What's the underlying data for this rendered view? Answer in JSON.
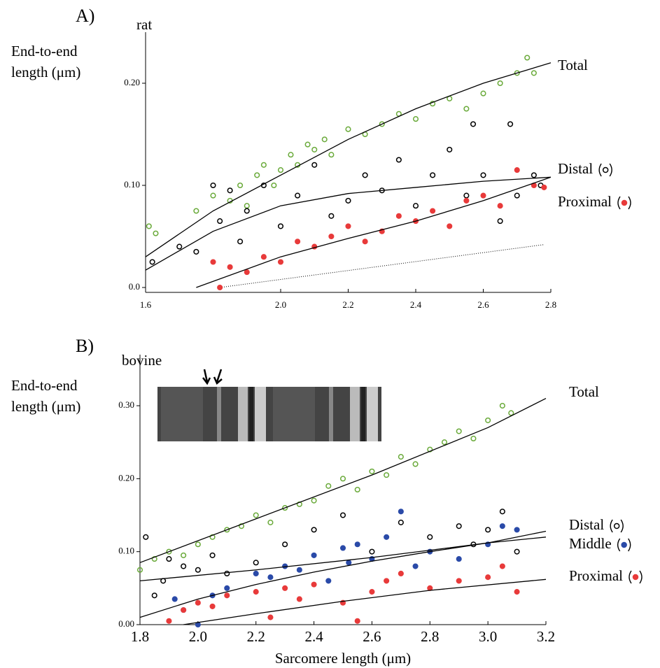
{
  "chart_data": [
    {
      "type": "scatter",
      "panel": "A)",
      "subtitle": "rat",
      "ylabel": [
        "End-to-end",
        "length (μm)"
      ],
      "xlim": [
        1.6,
        2.8
      ],
      "ylim": [
        0,
        0.25
      ],
      "xticks": [
        1.6,
        {
          "value": 2,
          "label": "2.0"
        },
        2.2,
        2.4,
        2.6,
        2.8
      ],
      "yticks": [
        {
          "value": 0,
          "label": "0.0"
        },
        {
          "value": 0.1,
          "label": "0.10"
        },
        {
          "value": 0.2,
          "label": "0.20"
        }
      ],
      "series": [
        {
          "name": "Total",
          "color": "#6aaa3a",
          "marker": "open",
          "x": [
            1.61,
            1.63,
            1.75,
            1.8,
            1.85,
            1.88,
            1.9,
            1.93,
            1.95,
            1.98,
            2.0,
            2.03,
            2.05,
            2.08,
            2.1,
            2.13,
            2.15,
            2.2,
            2.25,
            2.3,
            2.35,
            2.4,
            2.45,
            2.5,
            2.55,
            2.6,
            2.65,
            2.7,
            2.73,
            2.75
          ],
          "values": [
            0.06,
            0.053,
            0.075,
            0.09,
            0.085,
            0.1,
            0.08,
            0.11,
            0.12,
            0.1,
            0.115,
            0.13,
            0.12,
            0.14,
            0.135,
            0.145,
            0.13,
            0.155,
            0.15,
            0.16,
            0.17,
            0.165,
            0.18,
            0.185,
            0.175,
            0.19,
            0.2,
            0.21,
            0.225,
            0.21
          ],
          "fit": {
            "x": [
              1.6,
              1.8,
              2.0,
              2.2,
              2.4,
              2.6,
              2.8
            ],
            "values": [
              0.03,
              0.075,
              0.11,
              0.145,
              0.175,
              0.2,
              0.22
            ]
          }
        },
        {
          "name": "Distal",
          "color": "#000000",
          "marker": "open",
          "x": [
            1.62,
            1.7,
            1.75,
            1.8,
            1.82,
            1.85,
            1.88,
            1.9,
            1.95,
            2.0,
            2.05,
            2.1,
            2.15,
            2.2,
            2.25,
            2.3,
            2.35,
            2.4,
            2.45,
            2.5,
            2.55,
            2.57,
            2.6,
            2.65,
            2.68,
            2.7,
            2.75,
            2.77
          ],
          "values": [
            0.025,
            0.04,
            0.035,
            0.1,
            0.065,
            0.095,
            0.045,
            0.075,
            0.1,
            0.06,
            0.09,
            0.12,
            0.07,
            0.085,
            0.11,
            0.095,
            0.125,
            0.08,
            0.11,
            0.135,
            0.09,
            0.16,
            0.11,
            0.065,
            0.16,
            0.09,
            0.11,
            0.1
          ],
          "fit": {
            "x": [
              1.6,
              1.8,
              2.0,
              2.2,
              2.4,
              2.6,
              2.8
            ],
            "values": [
              0.017,
              0.055,
              0.08,
              0.092,
              0.098,
              0.104,
              0.108
            ]
          }
        },
        {
          "name": "Proximal",
          "color": "#e83a3a",
          "marker": "filled",
          "x": [
            1.8,
            1.82,
            1.85,
            1.9,
            1.95,
            2.0,
            2.05,
            2.1,
            2.15,
            2.2,
            2.25,
            2.3,
            2.35,
            2.4,
            2.45,
            2.5,
            2.55,
            2.6,
            2.65,
            2.7,
            2.75,
            2.78
          ],
          "values": [
            0.025,
            0.0,
            0.02,
            0.015,
            0.03,
            0.025,
            0.045,
            0.04,
            0.05,
            0.06,
            0.045,
            0.055,
            0.07,
            0.065,
            0.075,
            0.06,
            0.085,
            0.09,
            0.08,
            0.115,
            0.1,
            0.098
          ],
          "fit": {
            "x": [
              1.75,
              2.0,
              2.2,
              2.4,
              2.6,
              2.8
            ],
            "values": [
              0,
              0.03,
              0.048,
              0.065,
              0.085,
              0.108
            ]
          }
        }
      ],
      "reference": {
        "x": [
          1.82,
          2.78
        ],
        "values": [
          0,
          0.042
        ]
      }
    },
    {
      "type": "scatter",
      "panel": "B)",
      "subtitle": "bovine",
      "ylabel": [
        "End-to-end",
        "length (μm)"
      ],
      "xlabel": "Sarcomere length (μm)",
      "xlim": [
        1.8,
        3.2
      ],
      "ylim": [
        0,
        0.37
      ],
      "xticks": [
        1.8,
        {
          "value": 2,
          "label": "2.0"
        },
        2.2,
        2.4,
        2.6,
        2.8,
        {
          "value": 3,
          "label": "3.0"
        },
        3.2
      ],
      "yticks": [
        {
          "value": 0,
          "label": "0.00"
        },
        {
          "value": 0.1,
          "label": "0.10"
        },
        {
          "value": 0.2,
          "label": "0.20"
        },
        {
          "value": 0.3,
          "label": "0.30"
        }
      ],
      "series": [
        {
          "name": "Total",
          "color": "#6aaa3a",
          "marker": "open",
          "x": [
            1.8,
            1.85,
            1.9,
            1.95,
            2.0,
            2.05,
            2.1,
            2.15,
            2.2,
            2.25,
            2.3,
            2.35,
            2.4,
            2.45,
            2.5,
            2.55,
            2.6,
            2.65,
            2.7,
            2.75,
            2.8,
            2.85,
            2.9,
            2.95,
            3.0,
            3.05,
            3.08
          ],
          "values": [
            0.075,
            0.09,
            0.1,
            0.095,
            0.11,
            0.12,
            0.13,
            0.135,
            0.15,
            0.14,
            0.16,
            0.165,
            0.17,
            0.19,
            0.2,
            0.185,
            0.21,
            0.205,
            0.23,
            0.22,
            0.24,
            0.25,
            0.265,
            0.255,
            0.28,
            0.3,
            0.29
          ],
          "fit": {
            "x": [
              1.8,
              2.2,
              2.6,
              3.0,
              3.2
            ],
            "values": [
              0.085,
              0.145,
              0.205,
              0.27,
              0.31
            ]
          }
        },
        {
          "name": "Middle",
          "color": "#2a4aa8",
          "marker": "filled",
          "x": [
            1.92,
            1.95,
            2.0,
            2.05,
            2.1,
            2.2,
            2.25,
            2.3,
            2.35,
            2.4,
            2.45,
            2.5,
            2.52,
            2.55,
            2.6,
            2.65,
            2.7,
            2.75,
            2.8,
            2.9,
            3.0,
            3.05,
            3.1
          ],
          "values": [
            0.035,
            0.02,
            0.0,
            0.04,
            0.05,
            0.07,
            0.065,
            0.08,
            0.075,
            0.095,
            0.06,
            0.105,
            0.085,
            0.11,
            0.09,
            0.12,
            0.155,
            0.08,
            0.1,
            0.09,
            0.11,
            0.135,
            0.13
          ],
          "fit": {
            "x": [
              1.8,
              2.2,
              2.6,
              3.0,
              3.2
            ],
            "values": [
              0.06,
              0.075,
              0.092,
              0.112,
              0.128
            ]
          }
        },
        {
          "name": "Distal",
          "color": "#000000",
          "marker": "open",
          "x": [
            1.82,
            1.85,
            1.88,
            1.9,
            1.95,
            2.0,
            2.05,
            2.1,
            2.2,
            2.3,
            2.4,
            2.5,
            2.6,
            2.7,
            2.8,
            2.9,
            2.95,
            3.0,
            3.05,
            3.1
          ],
          "values": [
            0.12,
            0.04,
            0.06,
            0.09,
            0.08,
            0.075,
            0.095,
            0.07,
            0.085,
            0.11,
            0.13,
            0.15,
            0.1,
            0.14,
            0.12,
            0.135,
            0.11,
            0.13,
            0.155,
            0.1
          ],
          "fit": {
            "x": [
              1.8,
              2.0,
              2.2,
              2.4,
              2.6,
              2.8,
              3.0,
              3.2
            ],
            "values": [
              0.01,
              0.035,
              0.055,
              0.072,
              0.087,
              0.1,
              0.112,
              0.12
            ]
          }
        },
        {
          "name": "Proximal",
          "color": "#e83a3a",
          "marker": "filled",
          "x": [
            1.9,
            1.95,
            2.0,
            2.05,
            2.1,
            2.2,
            2.25,
            2.3,
            2.35,
            2.4,
            2.5,
            2.55,
            2.6,
            2.65,
            2.7,
            2.8,
            2.9,
            3.0,
            3.05,
            3.1
          ],
          "values": [
            0.005,
            0.02,
            0.03,
            0.025,
            0.04,
            0.045,
            0.01,
            0.05,
            0.035,
            0.055,
            0.03,
            0.005,
            0.045,
            0.06,
            0.07,
            0.05,
            0.06,
            0.065,
            0.08,
            0.045
          ],
          "fit": {
            "x": [
              1.95,
              2.2,
              2.5,
              2.8,
              3.2
            ],
            "values": [
              0,
              0.015,
              0.032,
              0.047,
              0.062
            ]
          }
        }
      ]
    }
  ]
}
